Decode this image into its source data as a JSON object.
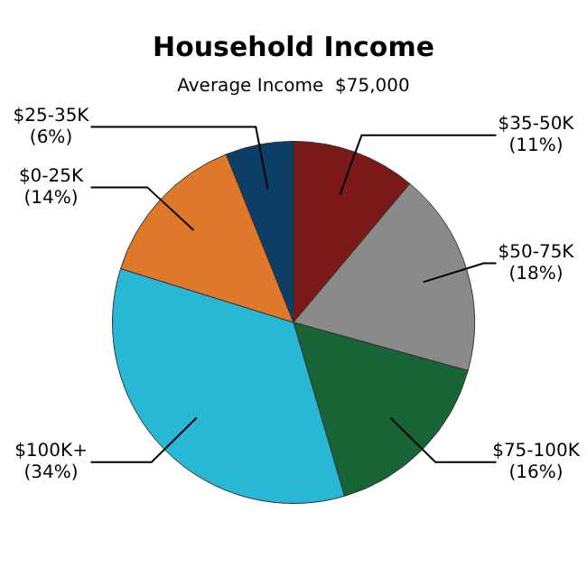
{
  "chart_data": {
    "type": "pie",
    "title": "Household Income",
    "subtitle": "Average Income  $75,000",
    "categories": [
      "$35-50K",
      "$50-75K",
      "$75-100K",
      "$100K+",
      "$0-25K",
      "$25-35K"
    ],
    "values": [
      11,
      18,
      16,
      34,
      14,
      6
    ],
    "value_labels": [
      "(11%)",
      "(18%)",
      "(16%)",
      "(34%)",
      "(14%)",
      "(6%)"
    ],
    "colors": [
      "#7b1818",
      "#8a8a8a",
      "#176437",
      "#27b8d6",
      "#e0782c",
      "#0c3e66"
    ],
    "legend": false
  }
}
